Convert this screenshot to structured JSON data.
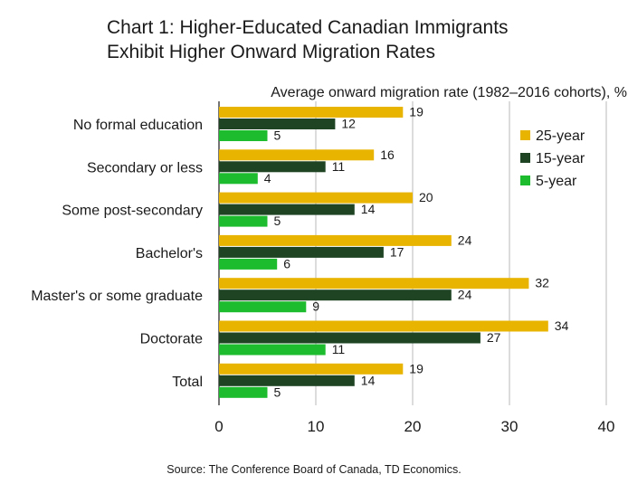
{
  "title_lines": [
    "Chart 1: Higher-Educated Canadian Immigrants",
    "Exhibit Higher Onward Migration Rates"
  ],
  "source": "Source: The Conference Board of Canada, TD Economics.",
  "chart_data": {
    "type": "bar",
    "orientation": "horizontal",
    "title": "Chart 1: Higher-Educated Canadian Immigrants Exhibit Higher Onward Migration Rates",
    "xlabel": "Average onward migration rate (1982–2016 cohorts), %",
    "ylabel": "",
    "categories": [
      "No formal education",
      "Secondary or less",
      "Some post-secondary",
      "Bachelor's",
      "Master's or some graduate",
      "Doctorate",
      "Total"
    ],
    "series": [
      {
        "name": "25-year",
        "color": "#e8b400",
        "values": [
          19,
          16,
          20,
          24,
          32,
          34,
          19
        ]
      },
      {
        "name": "15-year",
        "color": "#1e4424",
        "values": [
          12,
          11,
          14,
          17,
          24,
          27,
          14
        ]
      },
      {
        "name": "5-year",
        "color": "#1dbb2e",
        "values": [
          5,
          4,
          5,
          6,
          9,
          11,
          5
        ]
      }
    ],
    "xlim": [
      0,
      40
    ],
    "xticks": [
      0,
      10,
      20,
      30,
      40
    ],
    "grid": "vertical",
    "legend": "top-right",
    "data_labels": true
  }
}
